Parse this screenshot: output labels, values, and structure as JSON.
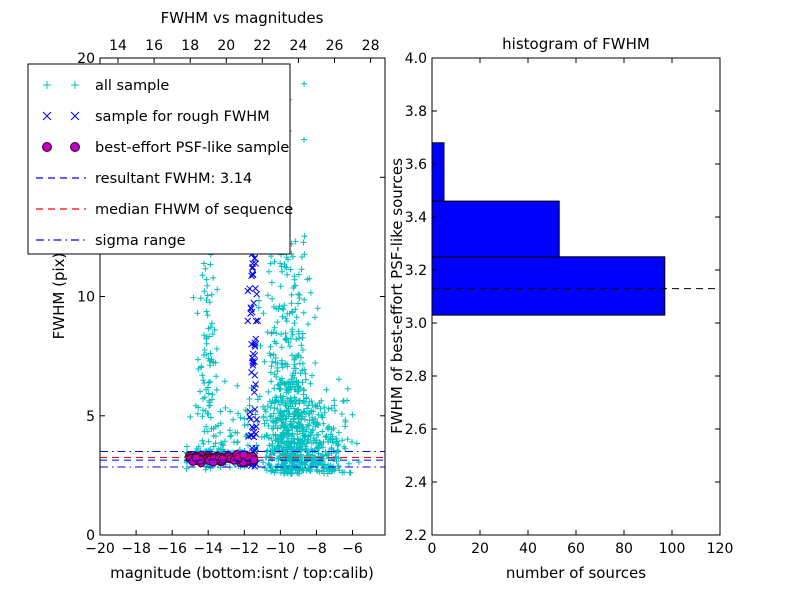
{
  "figure": {
    "background": "#ffffff"
  },
  "render_hints": {
    "seed": 12
  },
  "chart_data": [
    {
      "type": "scatter",
      "title": "FWHM vs magnitudes",
      "xlabel": "magnitude (bottom:isnt / top:calib)",
      "ylabel": "FWHM (pix)",
      "xlim": [
        -20,
        -4.2
      ],
      "ylim": [
        0,
        20
      ],
      "grid": false,
      "xticks": {
        "values": [
          -20,
          -18,
          -16,
          -14,
          -12,
          -10,
          -8,
          -6
        ],
        "labels": [
          "−20",
          "−18",
          "−16",
          "−14",
          "−12",
          "−10",
          "−8",
          "−6"
        ]
      },
      "top_axis": {
        "lim": [
          13,
          28.8
        ],
        "values": [
          14,
          16,
          18,
          20,
          22,
          24,
          26,
          28
        ],
        "labels": [
          "14",
          "16",
          "18",
          "20",
          "22",
          "24",
          "26",
          "28"
        ]
      },
      "yticks": {
        "values": [
          0,
          5,
          10,
          15,
          20
        ],
        "labels": [
          "0",
          "5",
          "10",
          "15",
          "20"
        ]
      },
      "series": [
        {
          "name": "all sample",
          "marker": "plus",
          "color": "#00bfbf",
          "clusters": [
            {
              "n": 420,
              "x_dist": "normal",
              "x_mean": -9.6,
              "x_sd": 0.55,
              "y_dist": "halfnormal",
              "y_base": 2.55,
              "y_sd": 2.4,
              "y_max": 13
            },
            {
              "n": 130,
              "x_dist": "normal",
              "x_mean": -9.5,
              "x_sd": 0.75,
              "y_dist": "uniform",
              "y_min": 4.5,
              "y_max": 12.5
            },
            {
              "n": 14,
              "x_dist": "normal",
              "x_mean": -9.3,
              "x_sd": 0.9,
              "y_dist": "uniform",
              "y_min": 12.5,
              "y_max": 19.8
            },
            {
              "n": 90,
              "x_dist": "normal",
              "x_mean": -14.05,
              "x_sd": 0.3,
              "y_dist": "uniform",
              "y_min": 2.9,
              "y_max": 12.3
            },
            {
              "n": 160,
              "x_dist": "uniform",
              "x_min": -15.2,
              "x_max": -11.3,
              "y_dist": "normal",
              "y_mean": 3.25,
              "y_sd": 0.18
            },
            {
              "n": 170,
              "x_dist": "normal",
              "x_mean": -7.7,
              "x_sd": 0.8,
              "y_dist": "halfnormal",
              "y_base": 2.55,
              "y_sd": 1.3,
              "y_max": 8
            },
            {
              "n": 100,
              "x_dist": "normal",
              "x_mean": -8.8,
              "x_sd": 1.0,
              "y_dist": "halfnormal",
              "y_base": 2.6,
              "y_sd": 1.8,
              "y_max": 10
            },
            {
              "n": 60,
              "x_dist": "uniform",
              "x_min": -15.2,
              "x_max": -6.0,
              "y_dist": "uniform",
              "y_min": 2.6,
              "y_max": 6.5
            },
            {
              "n": 25,
              "x_dist": "uniform",
              "x_min": -13.6,
              "x_max": -12.2,
              "y_dist": "uniform",
              "y_min": 2.8,
              "y_max": 5.5
            }
          ]
        },
        {
          "name": "sample for rough FWHM",
          "marker": "x",
          "color": "#0000ff",
          "clusters": [
            {
              "n": 55,
              "x_dist": "normal",
              "x_mean": -11.5,
              "x_sd": 0.12,
              "y_dist": "uniform",
              "y_min": 2.85,
              "y_max": 12.4
            },
            {
              "n": 12,
              "x_dist": "normal",
              "x_mean": -11.5,
              "x_sd": 0.12,
              "y_dist": "uniform",
              "y_min": 2.9,
              "y_max": 4.5
            }
          ]
        },
        {
          "name": "best-effort PSF-like sample",
          "marker": "circle",
          "color": "#bf00bf",
          "clusters": [
            {
              "n": 110,
              "x_dist": "uniform",
              "x_min": -15.05,
              "x_max": -11.45,
              "y_dist": "normal",
              "y_mean": 3.2,
              "y_sd": 0.07
            }
          ]
        }
      ],
      "hlines": [
        {
          "label": "resultant FWHM: 3.14",
          "y": 3.14,
          "color": "#0000ff",
          "dash": "dashed"
        },
        {
          "label": "median FHWM of sequence",
          "y": 3.25,
          "color": "#ff0000",
          "dash": "dashed"
        },
        {
          "label": "sigma range upper",
          "y": 3.5,
          "color": "#0000ff",
          "dash": "dashdot"
        },
        {
          "label": "sigma range lower",
          "y": 2.85,
          "color": "#0000ff",
          "dash": "dashdot"
        }
      ],
      "legend": {
        "position": "upper-left",
        "entries": [
          {
            "label": "all sample",
            "type": "marker",
            "marker": "plus",
            "color": "#00bfbf"
          },
          {
            "label": "sample for rough FWHM",
            "type": "marker",
            "marker": "x",
            "color": "#0000ff"
          },
          {
            "label": "best-effort PSF-like sample",
            "type": "marker",
            "marker": "circle",
            "color": "#bf00bf"
          },
          {
            "label": "resultant FWHM: 3.14",
            "type": "line",
            "dash": "dashed",
            "color": "#0000ff"
          },
          {
            "label": "median FHWM of sequence",
            "type": "line",
            "dash": "dashed",
            "color": "#ff0000"
          },
          {
            "label": "sigma range",
            "type": "line",
            "dash": "dashdot",
            "color": "#0000ff"
          }
        ]
      }
    },
    {
      "type": "bar",
      "orientation": "horizontal",
      "title": "histogram of FWHM",
      "xlabel": "number of sources",
      "ylabel": "FWHM of best-effort PSF-like sources",
      "xlim": [
        0,
        120
      ],
      "ylim": [
        2.2,
        4.0
      ],
      "grid": false,
      "bar_color": "#0000ff",
      "xticks": {
        "values": [
          0,
          20,
          40,
          60,
          80,
          100,
          120
        ],
        "labels": [
          "0",
          "20",
          "40",
          "60",
          "80",
          "100",
          "120"
        ]
      },
      "yticks": {
        "values": [
          2.2,
          2.4,
          2.6,
          2.8,
          3.0,
          3.2,
          3.4,
          3.6,
          3.8,
          4.0
        ],
        "labels": [
          "2.2",
          "2.4",
          "2.6",
          "2.8",
          "3.0",
          "3.2",
          "3.4",
          "3.6",
          "3.8",
          "4.0"
        ]
      },
      "bins": [
        {
          "from": 3.03,
          "to": 3.25,
          "count": 97
        },
        {
          "from": 3.25,
          "to": 3.46,
          "count": 53
        },
        {
          "from": 3.46,
          "to": 3.68,
          "count": 5
        }
      ],
      "dashed_line": {
        "y": 3.13,
        "color": "#000000",
        "dash": "dashed"
      }
    }
  ]
}
